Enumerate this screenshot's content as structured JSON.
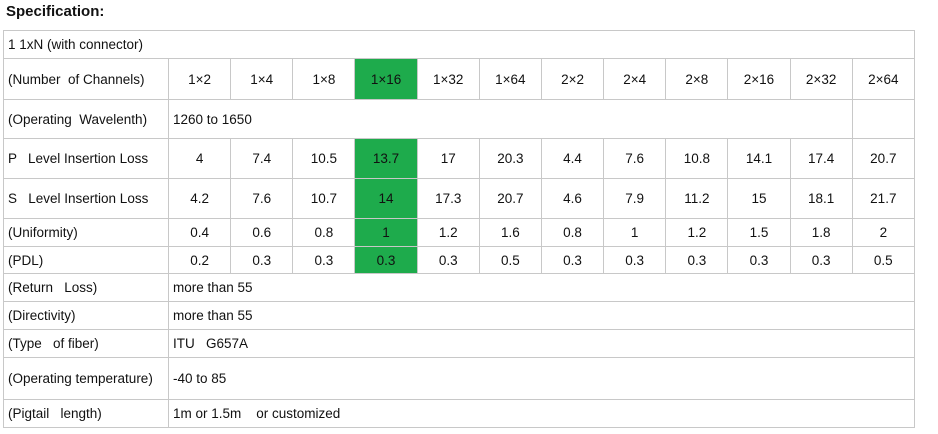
{
  "header": {
    "title": "Specification:"
  },
  "table": {
    "caption_row": "1 1xN (with connector)",
    "highlight": {
      "column": 3,
      "color": "#1eab4c"
    },
    "rows": [
      {
        "label": "(Number  of Channels)",
        "cells": [
          "1×2",
          "1×4",
          "1×8",
          "1×16",
          "1×32",
          "1×64",
          "2×2",
          "2×4",
          "2×8",
          "2×16",
          "2×32",
          "2×64"
        ]
      },
      {
        "label": "(Operating  Wavelenth)",
        "value": "1260 to 1650"
      },
      {
        "label": "P   Level Insertion Loss",
        "cells": [
          4,
          7.4,
          10.5,
          13.7,
          17,
          20.3,
          4.4,
          7.6,
          10.8,
          14.1,
          17.4,
          20.7
        ]
      },
      {
        "label": "S   Level Insertion Loss",
        "cells": [
          4.2,
          7.6,
          10.7,
          14,
          17.3,
          20.7,
          4.6,
          7.9,
          11.2,
          15,
          18.1,
          21.7
        ]
      },
      {
        "label": "(Uniformity)",
        "cells": [
          0.4,
          0.6,
          0.8,
          1,
          1.2,
          1.6,
          0.8,
          1,
          1.2,
          1.5,
          1.8,
          2
        ]
      },
      {
        "label": "(PDL)",
        "cells": [
          0.2,
          0.3,
          0.3,
          0.3,
          0.3,
          0.5,
          0.3,
          0.3,
          0.3,
          0.3,
          0.3,
          0.5
        ]
      },
      {
        "label": "(Return   Loss)",
        "text": "more than 55"
      },
      {
        "label": "(Directivity)",
        "text": "more than 55"
      },
      {
        "label": "(Type   of fiber)",
        "text": "ITU   G657A"
      },
      {
        "label": "(Operating temperature)",
        "text": "-40 to 85"
      },
      {
        "label": "(Pigtail   length)",
        "text": "1m or 1.5m    or customized"
      }
    ]
  }
}
